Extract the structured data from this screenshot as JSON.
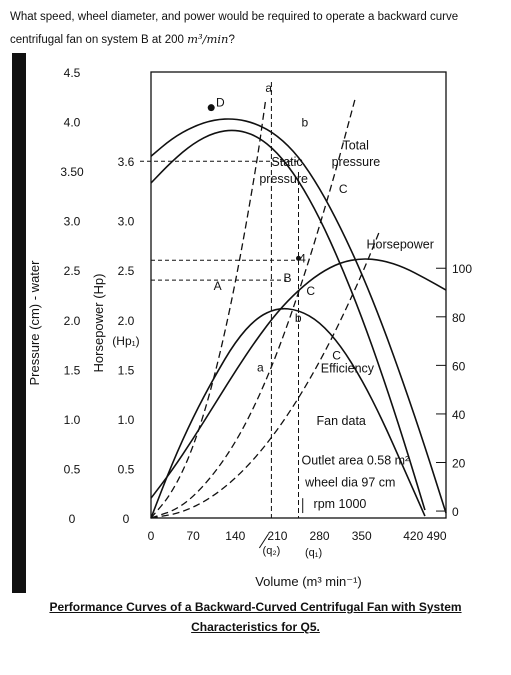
{
  "question": {
    "line1": "What speed, wheel diameter, and power would be required to operate a backward curve",
    "line2_prefix": "centrifugal fan on system B at 200 ",
    "line2_math": "m³/min",
    "line2_suffix": "?"
  },
  "caption": {
    "line1": "Performance Curves of a Backward-Curved Centrifugal Fan with System",
    "line2": "Characteristics for Q5."
  },
  "chart_data": {
    "type": "line",
    "xlabel": "Volume (m³ min⁻¹)",
    "xlim": [
      0,
      490
    ],
    "x_ticks": [
      "0",
      "70",
      "140",
      "210",
      "280",
      "350",
      "420 490"
    ],
    "x_tick_values": [
      0,
      70,
      140,
      210,
      280,
      350,
      455
    ],
    "x_marks": [
      "(q₂)",
      "(q₁)"
    ],
    "y_pressure": {
      "label": "Pressure (cm) - water",
      "ylim": [
        0,
        4.5
      ],
      "ticks": [
        "0",
        "0.5",
        "1.0",
        "1.5",
        "2.0",
        "2.5",
        "3.0",
        "3.50",
        "4.0",
        "4.5"
      ],
      "tick_values": [
        0,
        0.5,
        1.0,
        1.5,
        2.0,
        2.5,
        3.0,
        3.5,
        4.0,
        4.5
      ]
    },
    "y_hp": {
      "label": "Horsepower (Hp)",
      "ticks": [
        "0",
        "0.5",
        "1.0",
        "1.5",
        "2.0",
        "2.5",
        "3.0",
        "3.6"
      ],
      "tick_values": [
        0,
        0.5,
        1.0,
        1.5,
        2.0,
        2.5,
        3.0,
        3.6
      ],
      "hp1_label": "(Hp₁)"
    },
    "y_efficiency": {
      "ticks": [
        "0",
        "20",
        "40",
        "60",
        "80",
        "100"
      ],
      "tick_values": [
        0,
        20,
        40,
        60,
        80,
        100
      ]
    },
    "series": [
      {
        "name": "Total pressure",
        "axis": "pressure",
        "style": "solid",
        "x": [
          0,
          35,
          70,
          105,
          140,
          175,
          210,
          245,
          280,
          315,
          350,
          385,
          420,
          455,
          490
        ],
        "y": [
          3.65,
          3.83,
          3.95,
          4.02,
          4.03,
          3.98,
          3.86,
          3.65,
          3.33,
          2.93,
          2.47,
          1.94,
          1.35,
          0.72,
          0.05
        ]
      },
      {
        "name": "Static pressure",
        "axis": "pressure",
        "style": "solid",
        "x": [
          0,
          35,
          70,
          105,
          140,
          175,
          210,
          245,
          280,
          315,
          350,
          385,
          420,
          455
        ],
        "y": [
          3.38,
          3.6,
          3.78,
          3.89,
          3.92,
          3.86,
          3.69,
          3.41,
          3.03,
          2.56,
          2.03,
          1.43,
          0.78,
          0.08
        ]
      },
      {
        "name": "Horsepower",
        "axis": "pressure",
        "style": "solid",
        "x": [
          0,
          35,
          70,
          105,
          140,
          175,
          210,
          245,
          280,
          315,
          350,
          385,
          420,
          455,
          490
        ],
        "y": [
          0.2,
          0.48,
          0.8,
          1.14,
          1.48,
          1.8,
          2.08,
          2.3,
          2.47,
          2.58,
          2.62,
          2.6,
          2.53,
          2.42,
          2.3
        ]
      },
      {
        "name": "Efficiency",
        "axis": "pressure",
        "style": "solid",
        "x": [
          0,
          35,
          70,
          105,
          140,
          175,
          210,
          245,
          280,
          315,
          350,
          385,
          420,
          455
        ],
        "y": [
          0.0,
          0.55,
          1.02,
          1.42,
          1.78,
          2.02,
          2.12,
          2.1,
          1.98,
          1.74,
          1.4,
          0.98,
          0.5,
          0.02
        ]
      },
      {
        "name": "a",
        "axis": "pressure",
        "style": "dashed",
        "x": [
          0,
          35,
          70,
          105,
          140,
          175,
          190
        ],
        "y": [
          0,
          0.25,
          0.7,
          1.4,
          2.35,
          3.55,
          4.2
        ]
      },
      {
        "name": "b",
        "axis": "pressure",
        "style": "dashed",
        "x": [
          0,
          50,
          100,
          150,
          200,
          250,
          300,
          340
        ],
        "y": [
          0,
          0.1,
          0.4,
          0.85,
          1.5,
          2.35,
          3.35,
          4.25
        ]
      },
      {
        "name": "c",
        "axis": "pressure",
        "style": "dashed",
        "x": [
          0,
          50,
          100,
          150,
          200,
          250,
          300,
          350,
          380
        ],
        "y": [
          0,
          0.05,
          0.2,
          0.45,
          0.8,
          1.25,
          1.8,
          2.45,
          2.9
        ]
      }
    ],
    "annotations": [
      {
        "text": "D",
        "x": 108,
        "y": 4.15
      },
      {
        "text": "a",
        "x": 190,
        "y": 4.3
      },
      {
        "text": "b",
        "x": 250,
        "y": 3.95
      },
      {
        "text": "Total",
        "x": 318,
        "y": 3.72
      },
      {
        "text": "pressure",
        "x": 300,
        "y": 3.55
      },
      {
        "text": "Static",
        "x": 200,
        "y": 3.55
      },
      {
        "text": "pressure",
        "x": 180,
        "y": 3.38
      },
      {
        "text": "C",
        "x": 312,
        "y": 3.28
      },
      {
        "text": "4",
        "x": 246,
        "y": 2.58
      },
      {
        "text": "Horsepower",
        "x": 358,
        "y": 2.72
      },
      {
        "text": "B",
        "x": 220,
        "y": 2.38
      },
      {
        "text": "C",
        "x": 258,
        "y": 2.25
      },
      {
        "text": "A",
        "x": 104,
        "y": 2.3
      },
      {
        "text": "b",
        "x": 239,
        "y": 1.98
      },
      {
        "text": "C",
        "x": 301,
        "y": 1.6
      },
      {
        "text": "Efficiency",
        "x": 282,
        "y": 1.47
      },
      {
        "text": "a",
        "x": 176,
        "y": 1.48
      },
      {
        "text": "Fan data",
        "x": 275,
        "y": 0.94
      },
      {
        "text": "Outlet area 0.58 m²",
        "x": 250,
        "y": 0.54
      },
      {
        "text": "wheel dia 97 cm",
        "x": 256,
        "y": 0.32
      },
      {
        "text": "rpm 1000",
        "x": 270,
        "y": 0.1
      }
    ],
    "grid": false
  }
}
